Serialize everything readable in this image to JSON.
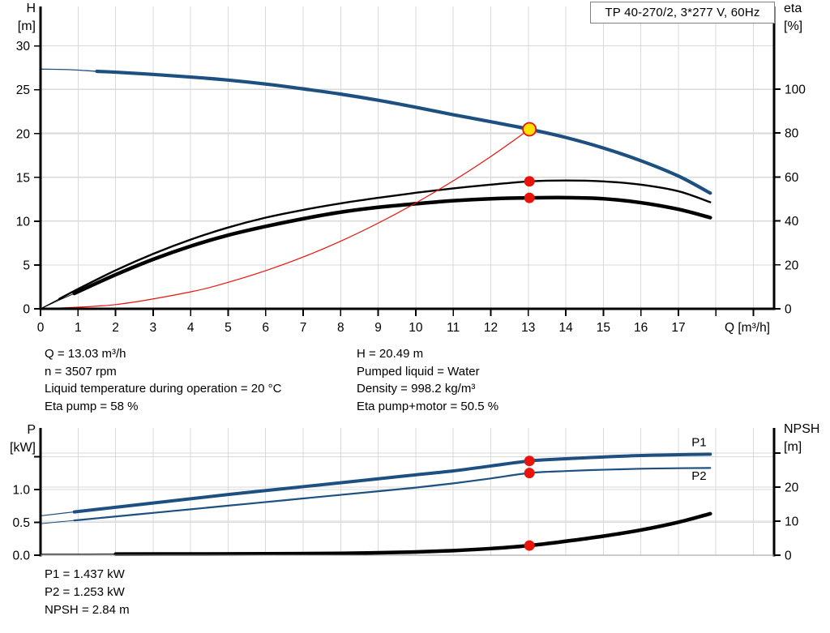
{
  "title_box": {
    "text": "TP 40-270/2, 3*277 V, 60Hz"
  },
  "colors": {
    "blue": "#1d5080",
    "red": "#e8140c",
    "yellow": "#ffe100",
    "black": "#000000",
    "grid": "#d9d9d9",
    "axis": "#000000",
    "thin_axis": "#9a9a9a"
  },
  "info": {
    "left": [
      "Q = 13.03 m³/h",
      "n = 3507 rpm",
      "Liquid temperature during operation = 20 °C",
      "Eta pump = 58 %"
    ],
    "right": [
      "H = 20.49 m",
      "Pumped liquid = Water",
      "Density = 998.2 kg/m³",
      "Eta pump+motor = 50.5 %"
    ]
  },
  "results": {
    "lines": [
      "P1 = 1.437 kW",
      "P2 = 1.253 kW",
      "NPSH = 2.84 m"
    ]
  },
  "chart_data": [
    {
      "type": "line",
      "name": "qh-eta-chart",
      "x_axis": {
        "min": 0,
        "max": 19.55,
        "label": "Q [m³/h]",
        "ticks": [
          [
            0,
            "0"
          ],
          [
            1,
            "1"
          ],
          [
            2,
            "2"
          ],
          [
            3,
            "3"
          ],
          [
            4,
            "4"
          ],
          [
            5,
            "5"
          ],
          [
            6,
            "6"
          ],
          [
            7,
            "7"
          ],
          [
            8,
            "8"
          ],
          [
            9,
            "9"
          ],
          [
            10,
            "10"
          ],
          [
            11,
            "11"
          ],
          [
            12,
            "12"
          ],
          [
            13,
            "13"
          ],
          [
            14,
            "14"
          ],
          [
            15,
            "15"
          ],
          [
            16,
            "16"
          ],
          [
            17,
            "17"
          ],
          [
            18,
            ""
          ],
          [
            19,
            ""
          ]
        ]
      },
      "left_axis": {
        "min": 0,
        "max": 34.5,
        "label_lines": [
          "H",
          "[m]"
        ],
        "ticks": [
          [
            0,
            "0"
          ],
          [
            5,
            "5"
          ],
          [
            10,
            "10"
          ],
          [
            15,
            "15"
          ],
          [
            20,
            "20"
          ],
          [
            25,
            "25"
          ],
          [
            30,
            "30"
          ]
        ]
      },
      "right_axis": {
        "min": 0,
        "max": 137.6,
        "label_lines": [
          "eta",
          "[%]"
        ],
        "ticks": [
          [
            0,
            "0"
          ],
          [
            20,
            "20"
          ],
          [
            40,
            "40"
          ],
          [
            60,
            "60"
          ],
          [
            80,
            "80"
          ],
          [
            100,
            "100"
          ]
        ]
      },
      "series": [
        {
          "name": "head-curve",
          "axis": "left",
          "color": "blue",
          "width": 4.2,
          "thin_width": 1.3,
          "thin_until": 1.5,
          "points": [
            [
              0,
              27.35
            ],
            [
              0.75,
              27.3
            ],
            [
              1.5,
              27.1
            ],
            [
              2,
              27.0
            ],
            [
              3,
              26.75
            ],
            [
              4,
              26.45
            ],
            [
              5,
              26.1
            ],
            [
              6,
              25.65
            ],
            [
              7,
              25.1
            ],
            [
              8,
              24.5
            ],
            [
              9,
              23.8
            ],
            [
              10,
              23.0
            ],
            [
              11,
              22.15
            ],
            [
              12,
              21.35
            ],
            [
              13.03,
              20.49
            ],
            [
              14,
              19.55
            ],
            [
              15,
              18.35
            ],
            [
              16,
              16.9
            ],
            [
              17,
              15.15
            ],
            [
              17.85,
              13.2
            ]
          ]
        },
        {
          "name": "eta-pump-curve",
          "axis": "right",
          "color": "black",
          "width": 2.4,
          "thin_width": 1,
          "thin_until": 0.5,
          "points": [
            [
              0,
              0
            ],
            [
              0.5,
              4.5
            ],
            [
              1,
              9
            ],
            [
              2,
              17.5
            ],
            [
              3,
              25
            ],
            [
              4,
              31.5
            ],
            [
              5,
              37
            ],
            [
              6,
              41.5
            ],
            [
              7,
              45
            ],
            [
              8,
              48
            ],
            [
              9,
              50.5
            ],
            [
              10,
              52.8
            ],
            [
              11,
              54.8
            ],
            [
              12,
              56.5
            ],
            [
              13.03,
              58
            ],
            [
              14,
              58.4
            ],
            [
              15,
              58
            ],
            [
              16,
              56.5
            ],
            [
              17,
              53.5
            ],
            [
              17.85,
              48.5
            ]
          ]
        },
        {
          "name": "eta-pump-motor-curve",
          "axis": "right",
          "color": "black",
          "width": 4.5,
          "thin_width": 1,
          "thin_until": 0.9,
          "points": [
            [
              0,
              0
            ],
            [
              0.5,
              4
            ],
            [
              0.9,
              7
            ],
            [
              2,
              15.5
            ],
            [
              3,
              22.5
            ],
            [
              4,
              28.5
            ],
            [
              5,
              33.5
            ],
            [
              6,
              37.5
            ],
            [
              7,
              41
            ],
            [
              8,
              44
            ],
            [
              9,
              46.2
            ],
            [
              10,
              47.8
            ],
            [
              11,
              49.2
            ],
            [
              12,
              50.1
            ],
            [
              13.03,
              50.5
            ],
            [
              14,
              50.6
            ],
            [
              15,
              50.1
            ],
            [
              16,
              48.3
            ],
            [
              17,
              45.3
            ],
            [
              17.85,
              41.5
            ]
          ]
        },
        {
          "name": "system-curve",
          "axis": "left",
          "color": "red",
          "width": 1.2,
          "thin_width": 0,
          "thin_until": 0,
          "points": [
            [
              0,
              0
            ],
            [
              2,
              0.48
            ],
            [
              4,
              1.93
            ],
            [
              5,
              3.02
            ],
            [
              6,
              4.35
            ],
            [
              7,
              5.91
            ],
            [
              8,
              7.72
            ],
            [
              9,
              9.78
            ],
            [
              10,
              12.07
            ],
            [
              11,
              14.6
            ],
            [
              12,
              17.38
            ],
            [
              13.03,
              20.49
            ]
          ]
        }
      ],
      "markers": [
        {
          "name": "duty-point",
          "type": "duty",
          "axis": "left",
          "q": 13.03,
          "v": 20.49
        },
        {
          "name": "eta-pump-point",
          "type": "dot",
          "axis": "right",
          "q": 13.03,
          "v": 58
        },
        {
          "name": "eta-pump-motor-point",
          "type": "dot",
          "axis": "right",
          "q": 13.03,
          "v": 50.5
        }
      ],
      "annotations": []
    },
    {
      "type": "line",
      "name": "power-npsh-chart",
      "x_axis": {
        "min": 0,
        "max": 19.55,
        "label": "",
        "ticks": [
          [
            1,
            ""
          ],
          [
            2,
            ""
          ],
          [
            3,
            ""
          ],
          [
            4,
            ""
          ],
          [
            5,
            ""
          ],
          [
            6,
            ""
          ],
          [
            7,
            ""
          ],
          [
            8,
            ""
          ],
          [
            9,
            ""
          ],
          [
            10,
            ""
          ],
          [
            11,
            ""
          ],
          [
            12,
            ""
          ],
          [
            13,
            ""
          ],
          [
            14,
            ""
          ],
          [
            15,
            ""
          ],
          [
            16,
            ""
          ],
          [
            17,
            ""
          ],
          [
            18,
            ""
          ],
          [
            19,
            ""
          ]
        ]
      },
      "left_axis": {
        "min": 0,
        "max": 1.94,
        "label_lines": [
          "P",
          "[kW]"
        ],
        "ticks": [
          [
            0,
            "0.0"
          ],
          [
            0.5,
            "0.5"
          ],
          [
            1,
            "1.0"
          ],
          [
            1.5,
            ""
          ]
        ]
      },
      "right_axis": {
        "min": 0,
        "max": 37.4,
        "label_lines": [
          "NPSH",
          "[m]"
        ],
        "ticks": [
          [
            0,
            "0"
          ],
          [
            10,
            "10"
          ],
          [
            20,
            "20"
          ],
          [
            30,
            ""
          ]
        ]
      },
      "series": [
        {
          "name": "p1-curve",
          "axis": "left",
          "color": "blue",
          "width": 4,
          "thin_width": 1.2,
          "thin_until": 0.9,
          "points": [
            [
              0,
              0.6
            ],
            [
              0.9,
              0.66
            ],
            [
              2,
              0.73
            ],
            [
              3,
              0.795
            ],
            [
              4,
              0.86
            ],
            [
              5,
              0.925
            ],
            [
              6,
              0.985
            ],
            [
              7,
              1.045
            ],
            [
              8,
              1.105
            ],
            [
              9,
              1.165
            ],
            [
              10,
              1.225
            ],
            [
              11,
              1.285
            ],
            [
              12,
              1.36
            ],
            [
              13.03,
              1.437
            ],
            [
              14,
              1.47
            ],
            [
              15,
              1.497
            ],
            [
              16,
              1.52
            ],
            [
              17,
              1.532
            ],
            [
              17.85,
              1.54
            ]
          ]
        },
        {
          "name": "p2-curve",
          "axis": "left",
          "color": "blue",
          "width": 2.2,
          "thin_width": 1,
          "thin_until": 0.9,
          "points": [
            [
              0,
              0.48
            ],
            [
              0.9,
              0.53
            ],
            [
              2,
              0.59
            ],
            [
              3,
              0.645
            ],
            [
              4,
              0.7
            ],
            [
              5,
              0.755
            ],
            [
              6,
              0.81
            ],
            [
              7,
              0.865
            ],
            [
              8,
              0.92
            ],
            [
              9,
              0.975
            ],
            [
              10,
              1.03
            ],
            [
              11,
              1.095
            ],
            [
              12,
              1.17
            ],
            [
              13.03,
              1.253
            ],
            [
              14,
              1.283
            ],
            [
              15,
              1.303
            ],
            [
              16,
              1.318
            ],
            [
              17,
              1.326
            ],
            [
              17.85,
              1.33
            ]
          ]
        },
        {
          "name": "npsh-curve",
          "axis": "right",
          "color": "black",
          "width": 4.5,
          "thin_width": 1,
          "thin_until": 0.9,
          "points": [
            [
              0,
              0.3
            ],
            [
              2,
              0.32
            ],
            [
              4,
              0.36
            ],
            [
              6,
              0.42
            ],
            [
              8,
              0.55
            ],
            [
              9,
              0.7
            ],
            [
              10,
              0.95
            ],
            [
              11,
              1.35
            ],
            [
              12,
              1.95
            ],
            [
              13.03,
              2.84
            ],
            [
              14,
              4.1
            ],
            [
              15,
              5.6
            ],
            [
              16,
              7.4
            ],
            [
              17,
              9.7
            ],
            [
              17.85,
              12.2
            ]
          ]
        }
      ],
      "markers": [
        {
          "name": "p1-point",
          "type": "dot",
          "axis": "left",
          "q": 13.03,
          "v": 1.437
        },
        {
          "name": "p2-point",
          "type": "dot",
          "axis": "left",
          "q": 13.03,
          "v": 1.253
        },
        {
          "name": "npsh-point",
          "type": "dot",
          "axis": "right",
          "q": 13.03,
          "v": 2.84
        }
      ],
      "annotations": [
        {
          "text": "P1",
          "q": 17.55,
          "v": 1.66,
          "axis": "left",
          "color": "blue"
        },
        {
          "text": "P2",
          "q": 17.55,
          "v": 1.15,
          "axis": "left",
          "color": "blue"
        }
      ]
    }
  ]
}
